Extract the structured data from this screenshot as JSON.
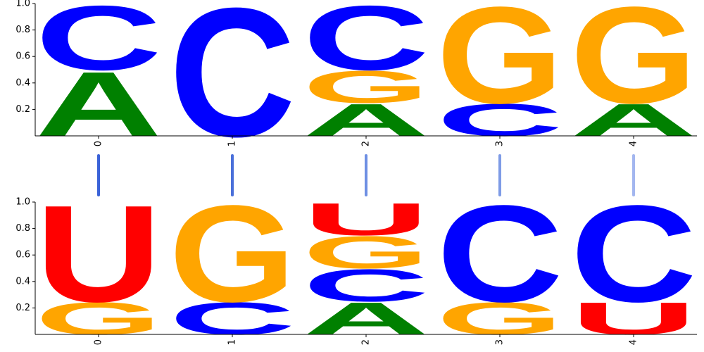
{
  "chart_data": [
    {
      "type": "logo",
      "categories": [
        "0",
        "1",
        "2",
        "3",
        "4"
      ],
      "positions": [
        {
          "letters": [
            "A",
            "C"
          ],
          "values": [
            0.5,
            0.5
          ]
        },
        {
          "letters": [
            "C"
          ],
          "values": [
            1.0
          ]
        },
        {
          "letters": [
            "A",
            "G",
            "C"
          ],
          "values": [
            0.25,
            0.25,
            0.5
          ]
        },
        {
          "letters": [
            "C",
            "G"
          ],
          "values": [
            0.25,
            0.75
          ]
        },
        {
          "letters": [
            "A",
            "G"
          ],
          "values": [
            0.25,
            0.75
          ]
        }
      ],
      "colors": {
        "A": "#008000",
        "C": "#0000ff",
        "G": "#ffa500",
        "U": "#ff0000"
      },
      "ylim": [
        0,
        1
      ],
      "yticks": [
        0.2,
        0.4,
        0.6,
        0.8,
        {
          "value": 1,
          "label": "1.0"
        }
      ]
    },
    {
      "type": "logo",
      "categories": [
        "0",
        "1",
        "2",
        "3",
        "4"
      ],
      "positions": [
        {
          "letters": [
            "G",
            "U"
          ],
          "values": [
            0.25,
            0.75
          ]
        },
        {
          "letters": [
            "C",
            "G"
          ],
          "values": [
            0.25,
            0.75
          ]
        },
        {
          "letters": [
            "A",
            "C",
            "G",
            "U"
          ],
          "values": [
            0.25,
            0.25,
            0.25,
            0.25
          ]
        },
        {
          "letters": [
            "G",
            "C"
          ],
          "values": [
            0.25,
            0.75
          ]
        },
        {
          "letters": [
            "U",
            "C"
          ],
          "values": [
            0.25,
            0.75
          ]
        }
      ],
      "colors": {
        "A": "#008000",
        "C": "#0000ff",
        "G": "#ffa500",
        "U": "#ff0000"
      },
      "ylim": [
        0,
        1
      ],
      "yticks": [
        0.2,
        0.4,
        0.6,
        0.8,
        {
          "value": 1,
          "label": "1.0"
        }
      ]
    }
  ],
  "links": [
    {
      "from": 0,
      "to": 0,
      "color": "#3b63d8"
    },
    {
      "from": 1,
      "to": 1,
      "color": "#4a70da"
    },
    {
      "from": 2,
      "to": 2,
      "color": "#6e8fe3"
    },
    {
      "from": 3,
      "to": 3,
      "color": "#7e9be6"
    },
    {
      "from": 4,
      "to": 4,
      "color": "#a3b6ef"
    }
  ]
}
